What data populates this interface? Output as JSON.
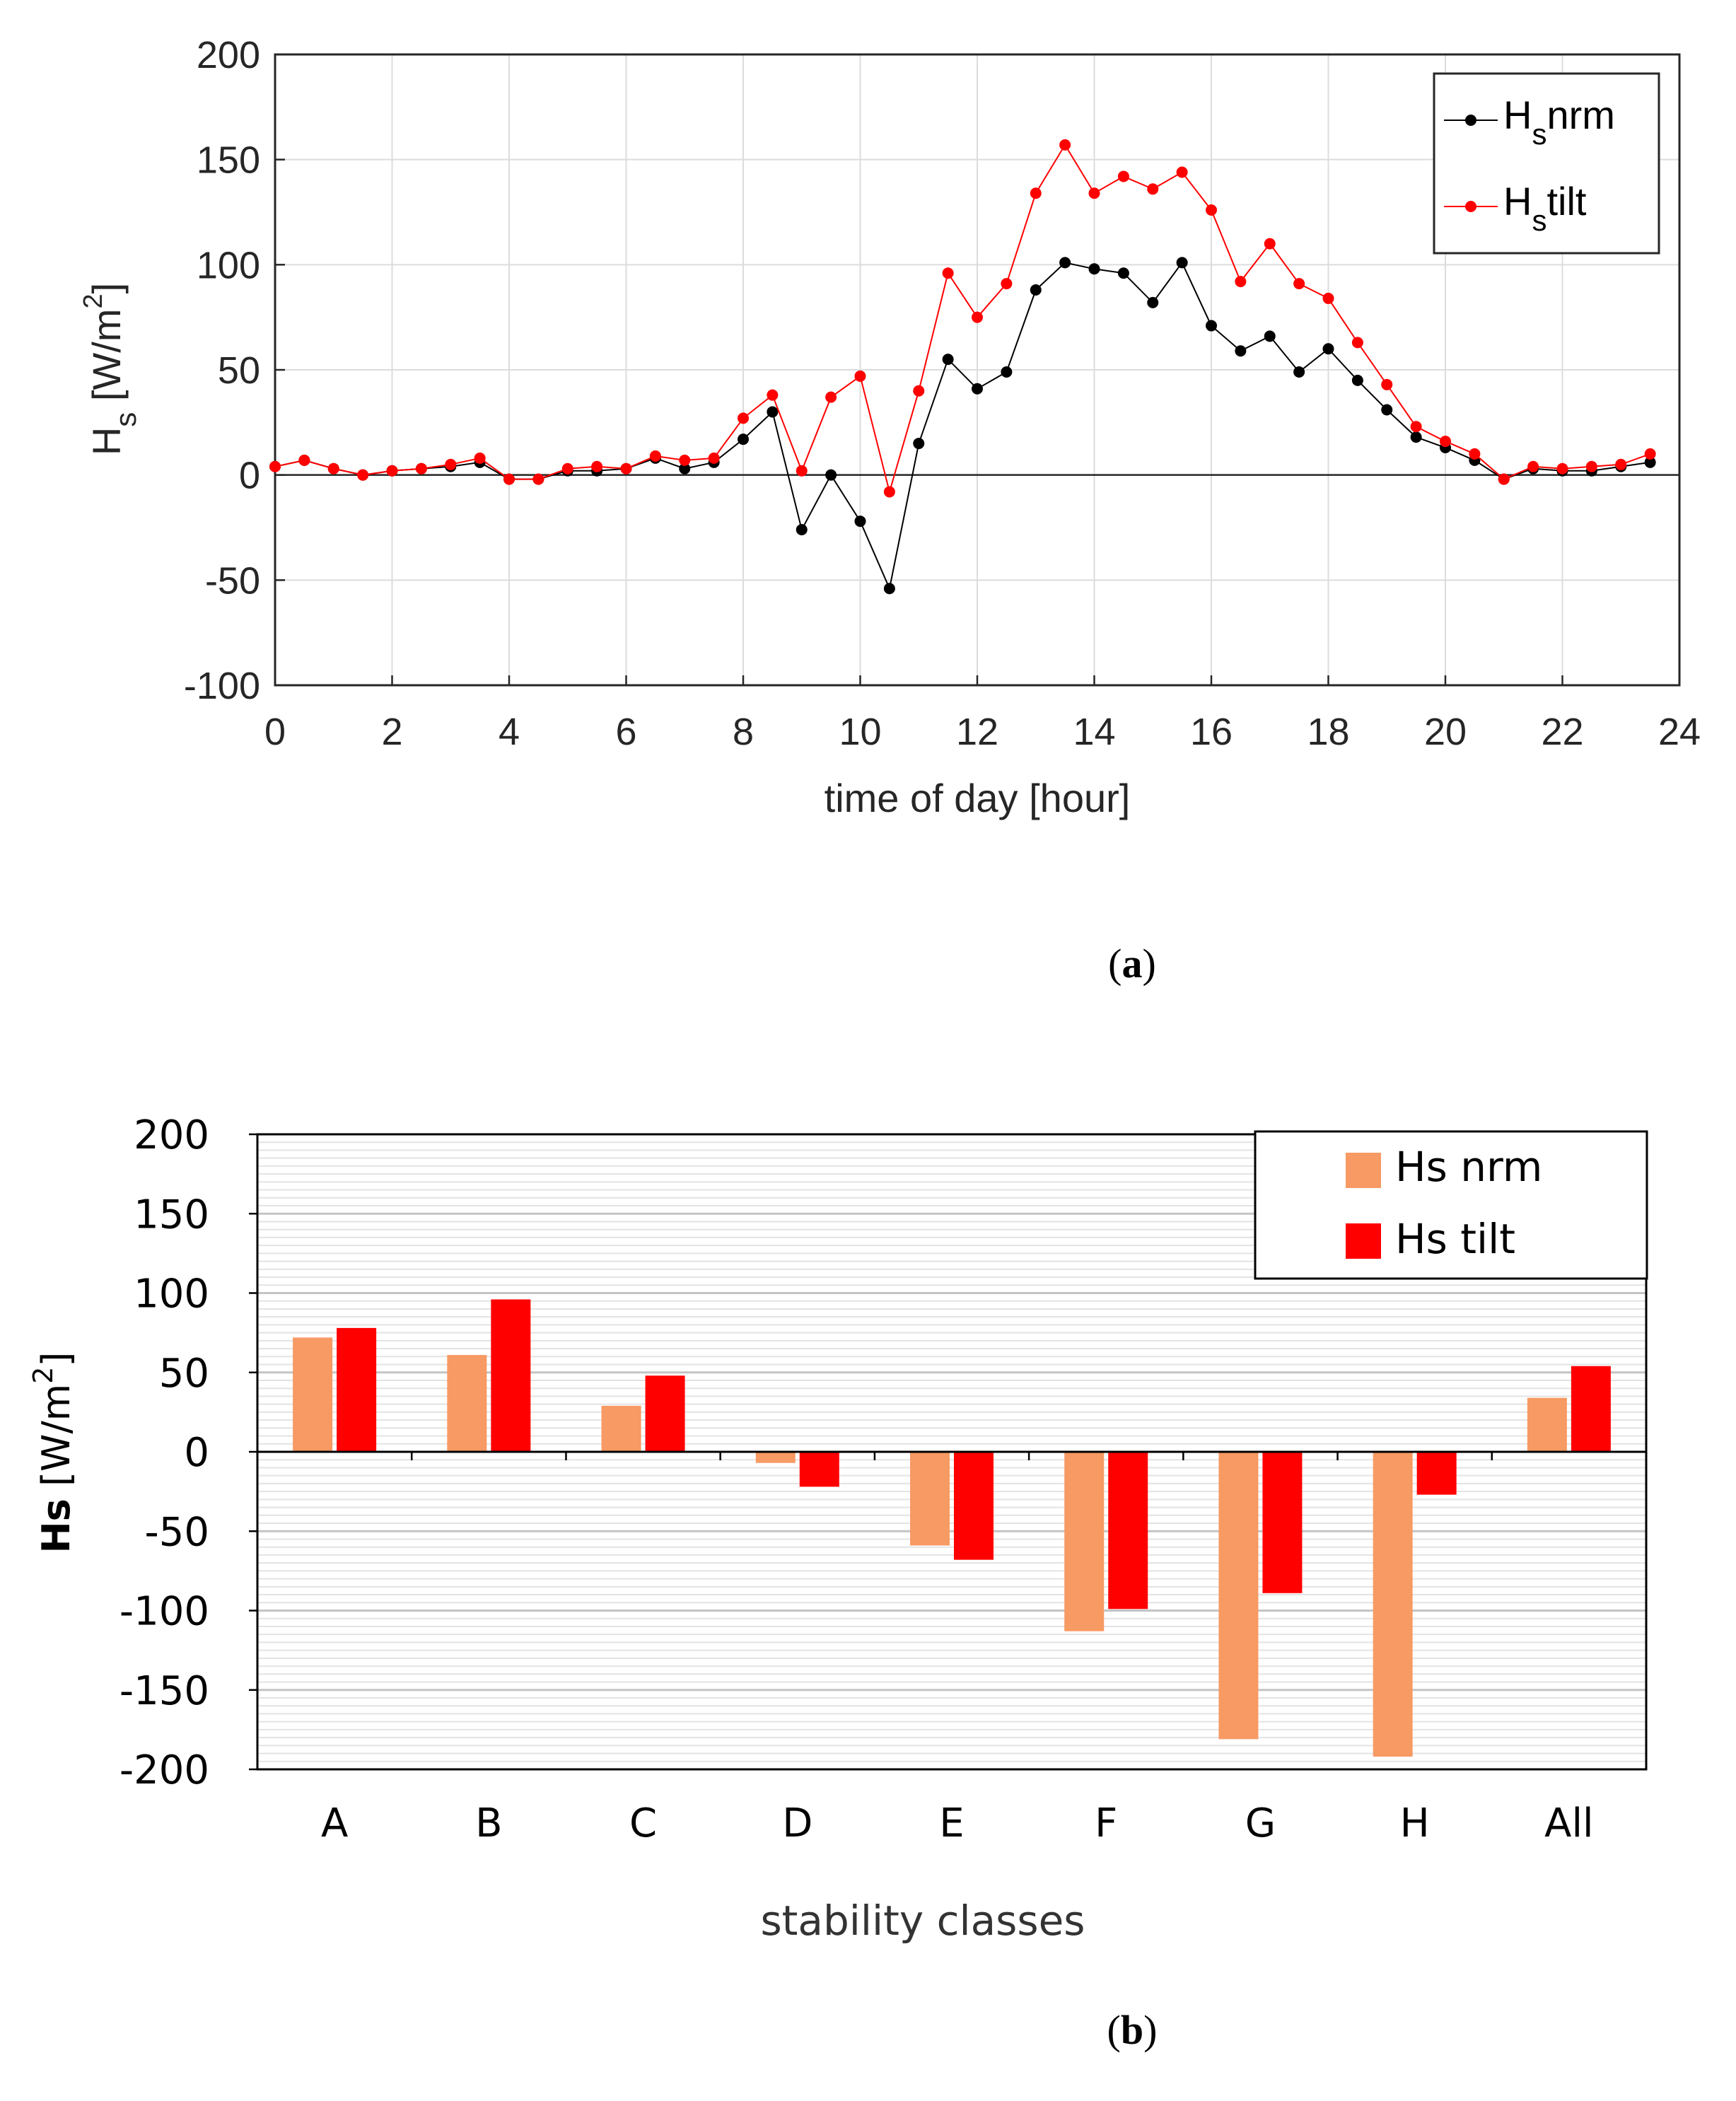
{
  "chart_data": [
    {
      "type": "line",
      "panel_label": "(a)",
      "panel_letter": "a",
      "xlabel": "time of day [hour]",
      "ylabel": "H",
      "ylabel_sub": "s",
      "ylabel_unit": " [W/m",
      "ylabel_sup": "2",
      "ylabel_close": "]",
      "xlim": [
        0,
        24
      ],
      "ylim": [
        -100,
        200
      ],
      "xticks": [
        "0",
        "2",
        "4",
        "6",
        "8",
        "10",
        "12",
        "14",
        "16",
        "18",
        "20",
        "22",
        "24"
      ],
      "yticks": [
        "-100",
        "-50",
        "0",
        "50",
        "100",
        "150",
        "200"
      ],
      "grid": true,
      "legend_position": "top-right",
      "x": [
        0,
        0.5,
        1,
        1.5,
        2,
        2.5,
        3,
        3.5,
        4,
        4.5,
        5,
        5.5,
        6,
        6.5,
        7,
        7.5,
        8,
        8.5,
        9,
        9.5,
        10,
        10.5,
        11,
        11.5,
        12,
        12.5,
        13,
        13.5,
        14,
        14.5,
        15,
        15.5,
        16,
        16.5,
        17,
        17.5,
        18,
        18.5,
        19,
        19.5,
        20,
        20.5,
        21,
        21.5,
        22,
        22.5,
        23,
        23.5
      ],
      "series": [
        {
          "name": "H",
          "name_sub": "s",
          "name_rest": "nrm",
          "color": "#000000",
          "values": [
            4,
            7,
            3,
            0,
            2,
            3,
            4,
            6,
            -2,
            -2,
            2,
            2,
            3,
            8,
            3,
            6,
            17,
            30,
            -26,
            0,
            -22,
            -54,
            15,
            55,
            41,
            49,
            88,
            101,
            98,
            96,
            82,
            101,
            71,
            59,
            66,
            49,
            60,
            45,
            31,
            18,
            13,
            7,
            -2,
            3,
            2,
            2,
            4,
            6
          ]
        },
        {
          "name": "H",
          "name_sub": "s",
          "name_rest": "tilt",
          "color": "#ff0000",
          "values": [
            4,
            7,
            3,
            0,
            2,
            3,
            5,
            8,
            -2,
            -2,
            3,
            4,
            3,
            9,
            7,
            8,
            27,
            38,
            2,
            37,
            47,
            -8,
            40,
            96,
            75,
            91,
            134,
            157,
            134,
            142,
            136,
            144,
            126,
            92,
            110,
            91,
            84,
            63,
            43,
            23,
            16,
            10,
            -2,
            4,
            3,
            4,
            5,
            10
          ]
        }
      ]
    },
    {
      "type": "bar",
      "panel_label": "(b)",
      "panel_letter": "b",
      "xlabel": "stability classes",
      "ylabel": "Hs",
      "ylabel_unit": " [W/m",
      "ylabel_sup": "2",
      "ylabel_close": "]",
      "ylim": [
        -200,
        200
      ],
      "yticks": [
        "-200",
        "-150",
        "-100",
        "-50",
        "0",
        "50",
        "100",
        "150",
        "200"
      ],
      "categories": [
        "A",
        "B",
        "C",
        "D",
        "E",
        "F",
        "G",
        "H",
        "All"
      ],
      "grid": true,
      "legend_position": "top-right",
      "series": [
        {
          "name": "Hs nrm",
          "color": "#f79a63",
          "values": [
            72,
            61,
            29,
            -7,
            -59,
            -113,
            -181,
            -192,
            34
          ]
        },
        {
          "name": "Hs tilt",
          "color": "#ff0000",
          "values": [
            78,
            96,
            48,
            -22,
            -68,
            -99,
            -89,
            -27,
            54
          ]
        }
      ]
    }
  ]
}
